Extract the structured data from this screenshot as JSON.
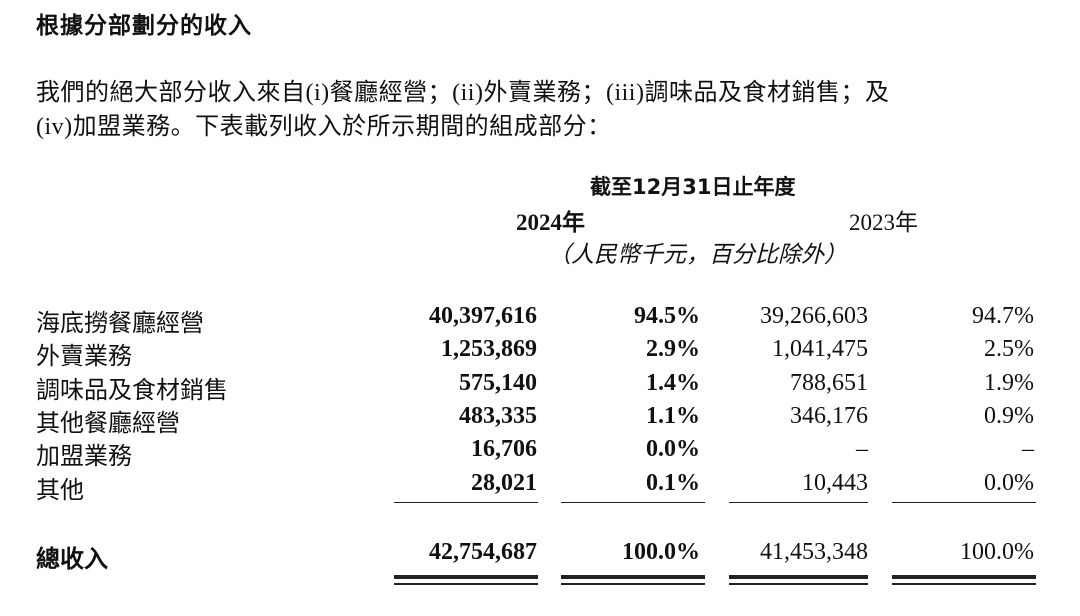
{
  "section_title": "根據分部劃分的收入",
  "paragraph": {
    "line1": "我們的絕大部分收入來自(i)餐廳經營；(ii)外賣業務；(iii)調味品及食材銷售；及",
    "line2": "(iv)加盟業務。下表載列收入於所示期間的組成部分："
  },
  "table": {
    "period_header": "截至12月31日止年度",
    "year_current": "2024年",
    "year_prior": "2023年",
    "unit_note": "（人民幣千元，百分比除外）",
    "rows": [
      {
        "label": "海底撈餐廳經營",
        "v2024": "40,397,616",
        "p2024": "94.5%",
        "v2023": "39,266,603",
        "p2023": "94.7%"
      },
      {
        "label": "外賣業務",
        "v2024": "1,253,869",
        "p2024": "2.9%",
        "v2023": "1,041,475",
        "p2023": "2.5%"
      },
      {
        "label": "調味品及食材銷售",
        "v2024": "575,140",
        "p2024": "1.4%",
        "v2023": "788,651",
        "p2023": "1.9%"
      },
      {
        "label": "其他餐廳經營",
        "v2024": "483,335",
        "p2024": "1.1%",
        "v2023": "346,176",
        "p2023": "0.9%"
      },
      {
        "label": "加盟業務",
        "v2024": "16,706",
        "p2024": "0.0%",
        "v2023": "–",
        "p2023": "–"
      },
      {
        "label": "其他",
        "v2024": "28,021",
        "p2024": "0.1%",
        "v2023": "10,443",
        "p2023": "0.0%"
      }
    ],
    "total": {
      "label": "總收入",
      "v2024": "42,754,687",
      "p2024": "100.0%",
      "v2023": "41,453,348",
      "p2023": "100.0%"
    }
  }
}
